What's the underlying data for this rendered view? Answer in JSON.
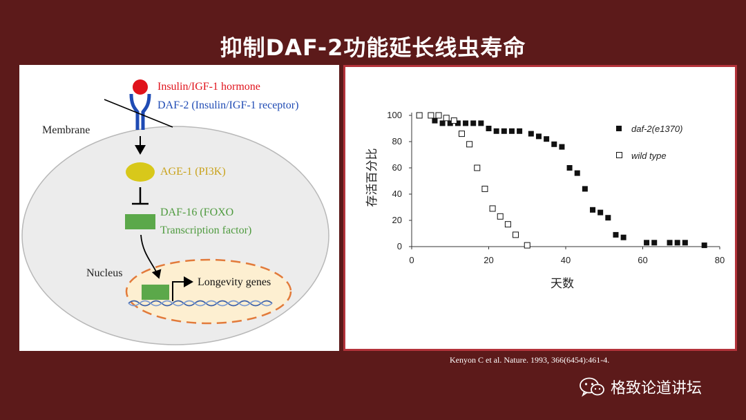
{
  "slide": {
    "title": "抑制DAF-2功能延长线虫寿命",
    "citation": "Kenyon C et al. Nature. 1993, 366(6454):461-4.",
    "watermark": "格致论道讲坛"
  },
  "pathway": {
    "hormone_label": "Insulin/IGF-1 hormone",
    "receptor_label": "DAF-2 (Insulin/IGF-1 receptor)",
    "membrane_label": "Membrane",
    "age1_label": "AGE-1 (PI3K)",
    "daf16_line1": "DAF-16 (FOXO",
    "daf16_line2": "Transcription factor)",
    "nucleus_label": "Nucleus",
    "longevity_label": "Longevity genes",
    "colors": {
      "hormone": "#e0121b",
      "receptor": "#1f4bb4",
      "age1": "#d8c81a",
      "age1_text": "#c9a21a",
      "daf16": "#5ba84a",
      "daf16_text": "#4e9a3e",
      "nucleus_border": "#e27a3a",
      "nucleus_fill": "#fdefd1",
      "cell_fill": "#ececec"
    }
  },
  "chart_data": {
    "type": "scatter",
    "xlabel": "天数",
    "ylabel": "存活百分比",
    "xlim": [
      0,
      80
    ],
    "ylim": [
      0,
      100
    ],
    "xticks": [
      0,
      20,
      40,
      60,
      80
    ],
    "yticks": [
      0,
      20,
      40,
      60,
      80,
      100
    ],
    "legend_position": "top-right",
    "series": [
      {
        "name": "daf-2(e1370)",
        "marker": "filled-square",
        "color": "#111111",
        "points": [
          [
            6,
            96
          ],
          [
            8,
            94
          ],
          [
            10,
            94
          ],
          [
            12,
            94
          ],
          [
            14,
            94
          ],
          [
            16,
            94
          ],
          [
            18,
            94
          ],
          [
            20,
            90
          ],
          [
            22,
            88
          ],
          [
            24,
            88
          ],
          [
            26,
            88
          ],
          [
            28,
            88
          ],
          [
            31,
            86
          ],
          [
            33,
            84
          ],
          [
            35,
            82
          ],
          [
            37,
            78
          ],
          [
            39,
            76
          ],
          [
            41,
            60
          ],
          [
            43,
            56
          ],
          [
            45,
            44
          ],
          [
            47,
            28
          ],
          [
            49,
            26
          ],
          [
            51,
            22
          ],
          [
            53,
            9
          ],
          [
            55,
            7
          ],
          [
            61,
            3
          ],
          [
            63,
            3
          ],
          [
            67,
            3
          ],
          [
            69,
            3
          ],
          [
            71,
            3
          ],
          [
            76,
            1
          ]
        ]
      },
      {
        "name": "wild type",
        "marker": "open-square",
        "color": "#111111",
        "points": [
          [
            2,
            100
          ],
          [
            5,
            100
          ],
          [
            7,
            100
          ],
          [
            9,
            98
          ],
          [
            11,
            96
          ],
          [
            13,
            86
          ],
          [
            15,
            78
          ],
          [
            17,
            60
          ],
          [
            19,
            44
          ],
          [
            21,
            29
          ],
          [
            23,
            23
          ],
          [
            25,
            17
          ],
          [
            27,
            9
          ],
          [
            30,
            1
          ]
        ]
      }
    ]
  }
}
